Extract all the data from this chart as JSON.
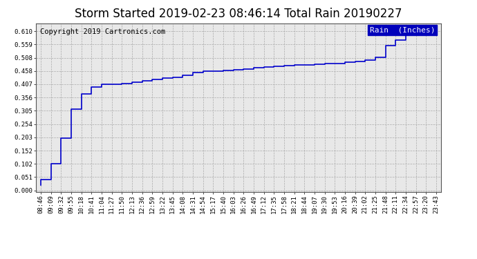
{
  "title": "Storm Started 2019-02-23 08:46:14 Total Rain 20190227",
  "copyright_text": "Copyright 2019 Cartronics.com",
  "legend_label": "Rain  (Inches)",
  "legend_bg_color": "#0000bb",
  "legend_text_color": "#ffffff",
  "line_color": "#0000cc",
  "bg_color": "#ffffff",
  "plot_bg_color": "#e8e8e8",
  "grid_color": "#aaaaaa",
  "y_ticks": [
    0.0,
    0.051,
    0.102,
    0.152,
    0.203,
    0.254,
    0.305,
    0.356,
    0.407,
    0.458,
    0.508,
    0.559,
    0.61
  ],
  "ylim": [
    -0.005,
    0.64
  ],
  "x_labels": [
    "08:46",
    "09:09",
    "09:32",
    "09:55",
    "10:18",
    "10:41",
    "11:04",
    "11:27",
    "11:50",
    "12:13",
    "12:36",
    "12:59",
    "13:22",
    "13:45",
    "14:08",
    "14:31",
    "14:54",
    "15:17",
    "15:40",
    "16:03",
    "16:26",
    "16:49",
    "17:12",
    "17:35",
    "17:58",
    "18:21",
    "18:44",
    "19:07",
    "19:30",
    "19:53",
    "20:16",
    "20:39",
    "21:02",
    "21:25",
    "21:48",
    "22:11",
    "22:34",
    "22:57",
    "23:20",
    "23:43"
  ],
  "data_x_indices": [
    0,
    1,
    2,
    3,
    4,
    5,
    6,
    7,
    8,
    9,
    10,
    11,
    12,
    13,
    14,
    15,
    16,
    17,
    18,
    19,
    20,
    21,
    22,
    23,
    24,
    25,
    26,
    27,
    28,
    29,
    30,
    31,
    32,
    33,
    34,
    35,
    36,
    37,
    38,
    39
  ],
  "data_y_values": [
    0.02,
    0.04,
    0.102,
    0.2,
    0.31,
    0.37,
    0.395,
    0.407,
    0.407,
    0.41,
    0.415,
    0.42,
    0.425,
    0.43,
    0.432,
    0.442,
    0.452,
    0.458,
    0.458,
    0.46,
    0.463,
    0.466,
    0.47,
    0.472,
    0.475,
    0.478,
    0.48,
    0.481,
    0.483,
    0.485,
    0.487,
    0.49,
    0.495,
    0.5,
    0.51,
    0.555,
    0.575,
    0.595,
    0.605,
    0.61
  ],
  "title_fontsize": 12,
  "copyright_fontsize": 7.5,
  "tick_labelsize": 6.5,
  "legend_fontsize": 8
}
